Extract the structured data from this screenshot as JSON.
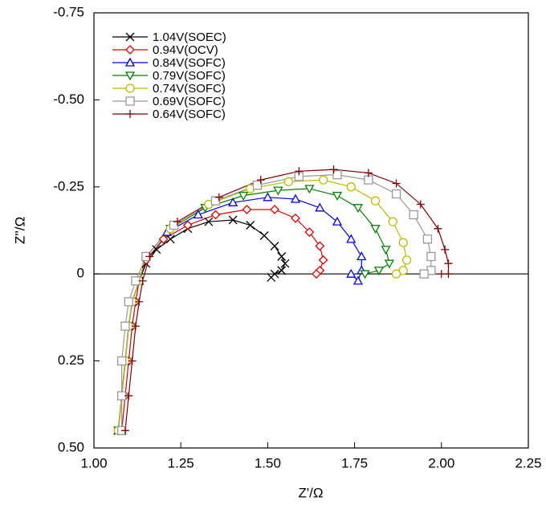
{
  "chart_data": {
    "type": "scatter-line",
    "x_label": "Z'/Ω",
    "y_label": "Z''/Ω",
    "xlim": [
      1.0,
      2.25
    ],
    "ylim": [
      -0.75,
      0.5
    ],
    "y_inverted": true,
    "xticks": [
      {
        "value": 1.0,
        "label": "1.00"
      },
      1.25,
      {
        "value": 1.5,
        "label": "1.50"
      },
      1.75,
      {
        "value": 2.0,
        "label": "2.00"
      },
      2.25
    ],
    "yticks": [
      -0.75,
      {
        "value": -0.5,
        "label": "-0.50"
      },
      -0.25,
      0,
      0.25,
      {
        "value": 0.5,
        "label": "0.50"
      }
    ],
    "legend": "upper left",
    "series": [
      {
        "name": "1.04V(SOEC)",
        "color": "#000000",
        "marker": "x",
        "x": [
          1.07,
          1.08,
          1.09,
          1.1,
          1.11,
          1.13,
          1.15,
          1.18,
          1.22,
          1.27,
          1.33,
          1.4,
          1.45,
          1.49,
          1.52,
          1.54,
          1.55,
          1.54,
          1.52,
          1.51
        ],
        "values": [
          0.45,
          0.35,
          0.25,
          0.15,
          0.08,
          0.02,
          -0.03,
          -0.07,
          -0.1,
          -0.13,
          -0.15,
          -0.155,
          -0.14,
          -0.11,
          -0.08,
          -0.05,
          -0.03,
          -0.01,
          0.0,
          0.01
        ]
      },
      {
        "name": "0.94V(OCV)",
        "color": "#e00000",
        "marker": "diamond",
        "x": [
          1.08,
          1.09,
          1.1,
          1.11,
          1.12,
          1.13,
          1.15,
          1.2,
          1.27,
          1.35,
          1.44,
          1.52,
          1.58,
          1.62,
          1.65,
          1.66,
          1.65,
          1.64
        ],
        "values": [
          0.45,
          0.35,
          0.25,
          0.15,
          0.08,
          0.02,
          -0.04,
          -0.1,
          -0.14,
          -0.17,
          -0.185,
          -0.185,
          -0.16,
          -0.12,
          -0.08,
          -0.04,
          -0.01,
          0.0
        ]
      },
      {
        "name": "0.84V(SOFC)",
        "color": "#0000ee",
        "marker": "triangle-up",
        "x": [
          1.07,
          1.08,
          1.09,
          1.1,
          1.11,
          1.13,
          1.15,
          1.21,
          1.3,
          1.4,
          1.5,
          1.58,
          1.65,
          1.7,
          1.74,
          1.77,
          1.77,
          1.76,
          1.74
        ],
        "values": [
          0.45,
          0.35,
          0.25,
          0.15,
          0.08,
          0.02,
          -0.05,
          -0.12,
          -0.17,
          -0.205,
          -0.22,
          -0.215,
          -0.19,
          -0.15,
          -0.1,
          -0.05,
          -0.01,
          0.02,
          0.0
        ]
      },
      {
        "name": "0.79V(SOFC)",
        "color": "#008000",
        "marker": "triangle-down",
        "x": [
          1.07,
          1.08,
          1.09,
          1.1,
          1.11,
          1.13,
          1.15,
          1.22,
          1.32,
          1.43,
          1.53,
          1.62,
          1.7,
          1.76,
          1.81,
          1.84,
          1.85,
          1.82,
          1.78
        ],
        "values": [
          0.45,
          0.35,
          0.25,
          0.15,
          0.08,
          0.02,
          -0.05,
          -0.13,
          -0.19,
          -0.225,
          -0.24,
          -0.245,
          -0.225,
          -0.19,
          -0.13,
          -0.07,
          -0.03,
          -0.01,
          0.0
        ]
      },
      {
        "name": "0.74V(SOFC)",
        "color": "#bbbb00",
        "marker": "circle",
        "x": [
          1.07,
          1.08,
          1.09,
          1.1,
          1.11,
          1.13,
          1.15,
          1.22,
          1.33,
          1.45,
          1.56,
          1.66,
          1.74,
          1.81,
          1.86,
          1.89,
          1.9,
          1.89,
          1.87
        ],
        "values": [
          0.45,
          0.35,
          0.25,
          0.15,
          0.08,
          0.02,
          -0.05,
          -0.13,
          -0.2,
          -0.245,
          -0.265,
          -0.27,
          -0.25,
          -0.21,
          -0.15,
          -0.09,
          -0.04,
          -0.01,
          0.0
        ]
      },
      {
        "name": "0.69V(SOFC)",
        "color": "#999999",
        "marker": "square",
        "x": [
          1.08,
          1.08,
          1.08,
          1.09,
          1.1,
          1.12,
          1.15,
          1.23,
          1.35,
          1.47,
          1.59,
          1.7,
          1.79,
          1.87,
          1.92,
          1.96,
          1.97,
          1.97,
          1.95
        ],
        "values": [
          0.45,
          0.35,
          0.25,
          0.15,
          0.08,
          0.02,
          -0.05,
          -0.14,
          -0.21,
          -0.255,
          -0.28,
          -0.285,
          -0.27,
          -0.23,
          -0.17,
          -0.1,
          -0.05,
          -0.01,
          0.0
        ]
      },
      {
        "name": "0.64V(SOFC)",
        "color": "#800000",
        "marker": "plus",
        "x": [
          1.09,
          1.1,
          1.11,
          1.12,
          1.13,
          1.14,
          1.16,
          1.24,
          1.36,
          1.48,
          1.59,
          1.69,
          1.79,
          1.87,
          1.94,
          1.99,
          2.01,
          2.02,
          2.02,
          2.0
        ],
        "values": [
          0.45,
          0.35,
          0.25,
          0.15,
          0.08,
          0.02,
          -0.05,
          -0.15,
          -0.22,
          -0.27,
          -0.295,
          -0.3,
          -0.29,
          -0.26,
          -0.2,
          -0.13,
          -0.07,
          -0.03,
          0.0,
          0.0
        ]
      }
    ]
  }
}
